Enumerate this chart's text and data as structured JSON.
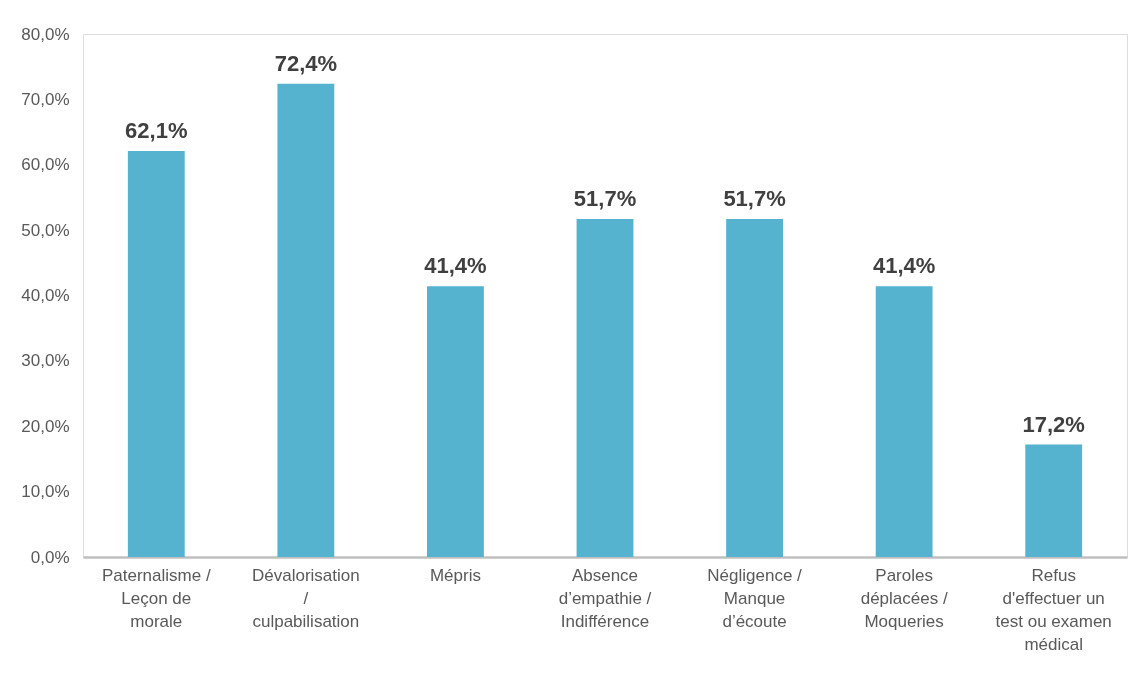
{
  "chart_data": {
    "type": "bar",
    "categories": [
      "Paternalisme / Leçon de morale",
      "Dévalorisation / culpabilisation",
      "Mépris",
      "Absence d’empathie / Indifférence",
      "Négligence / Manque d’écoute",
      "Paroles déplacées / Moqueries",
      "Refus d'effectuer un test ou examen médical"
    ],
    "values": [
      62.1,
      72.4,
      41.4,
      51.7,
      51.7,
      41.4,
      17.2
    ],
    "value_labels": [
      "62,1%",
      "72,4%",
      "41,4%",
      "51,7%",
      "51,7%",
      "41,4%",
      "17,2%"
    ],
    "color": "#55b3d0",
    "ylim": [
      0,
      80
    ],
    "yticks": [
      {
        "value": 0,
        "label": "0,0%"
      },
      {
        "value": 10,
        "label": "10,0%"
      },
      {
        "value": 20,
        "label": "20,0%"
      },
      {
        "value": 30,
        "label": "30,0%"
      },
      {
        "value": 40,
        "label": "40,0%"
      },
      {
        "value": 50,
        "label": "50,0%"
      },
      {
        "value": 60,
        "label": "60,0%"
      },
      {
        "value": 70,
        "label": "70,0%"
      },
      {
        "value": 80,
        "label": "80,0%"
      }
    ],
    "grid": false
  }
}
